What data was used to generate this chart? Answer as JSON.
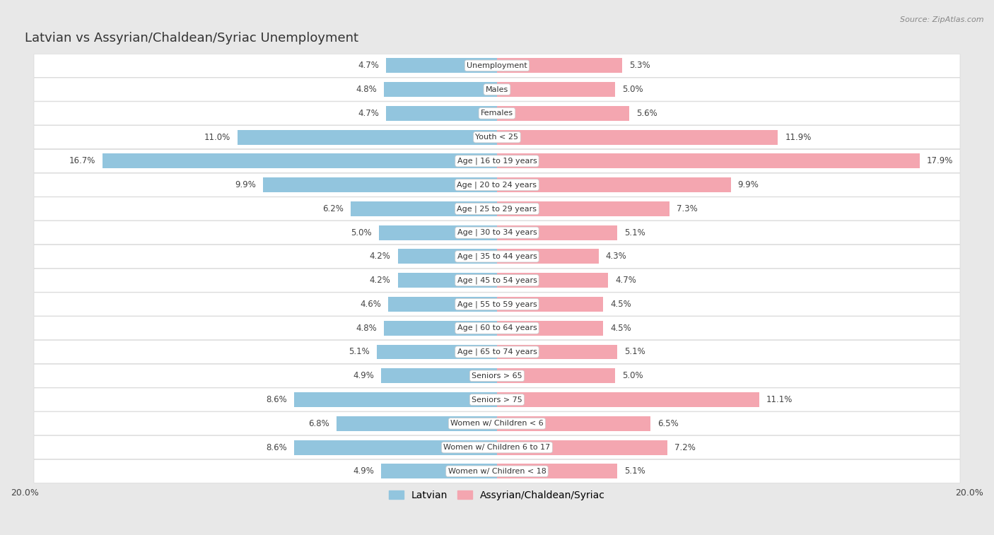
{
  "title": "Latvian vs Assyrian/Chaldean/Syriac Unemployment",
  "source": "Source: ZipAtlas.com",
  "categories": [
    "Unemployment",
    "Males",
    "Females",
    "Youth < 25",
    "Age | 16 to 19 years",
    "Age | 20 to 24 years",
    "Age | 25 to 29 years",
    "Age | 30 to 34 years",
    "Age | 35 to 44 years",
    "Age | 45 to 54 years",
    "Age | 55 to 59 years",
    "Age | 60 to 64 years",
    "Age | 65 to 74 years",
    "Seniors > 65",
    "Seniors > 75",
    "Women w/ Children < 6",
    "Women w/ Children 6 to 17",
    "Women w/ Children < 18"
  ],
  "latvian": [
    4.7,
    4.8,
    4.7,
    11.0,
    16.7,
    9.9,
    6.2,
    5.0,
    4.2,
    4.2,
    4.6,
    4.8,
    5.1,
    4.9,
    8.6,
    6.8,
    8.6,
    4.9
  ],
  "assyrian": [
    5.3,
    5.0,
    5.6,
    11.9,
    17.9,
    9.9,
    7.3,
    5.1,
    4.3,
    4.7,
    4.5,
    4.5,
    5.1,
    5.0,
    11.1,
    6.5,
    7.2,
    5.1
  ],
  "latvian_color": "#92c5de",
  "assyrian_color": "#f4a6b0",
  "bar_height": 0.62,
  "xlim": 20.0,
  "legend_latvian": "Latvian",
  "legend_assyrian": "Assyrian/Chaldean/Syriac",
  "row_bg_color": "#ffffff",
  "row_border_color": "#d8d8d8",
  "outer_bg_color": "#e8e8e8",
  "title_fontsize": 13,
  "label_fontsize": 8.5,
  "category_fontsize": 8,
  "axis_fontsize": 9
}
